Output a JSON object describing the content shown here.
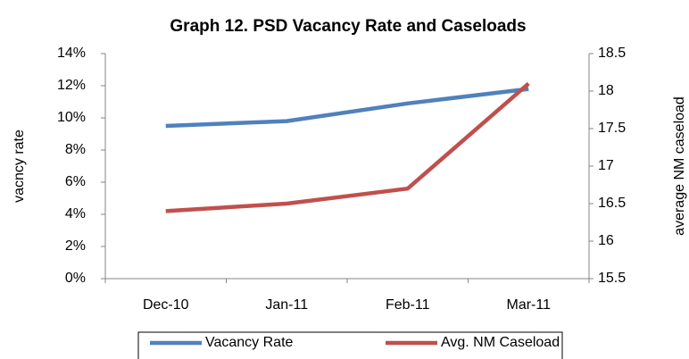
{
  "chart_data": {
    "type": "line",
    "title": "Graph 12. PSD Vacancy Rate and Caseloads",
    "y_label": "vacncy rate",
    "y2_label": "average NM caseload",
    "categories": [
      "Dec-10",
      "Jan-11",
      "Feb-11",
      "Mar-11"
    ],
    "series": [
      {
        "name": "Vacancy Rate",
        "color": "#4f81bd",
        "values": [
          9.5,
          9.8,
          10.9,
          11.8
        ]
      },
      {
        "name": "Avg. NM Caseload",
        "color": "#c0504d",
        "axis": "y2",
        "values": [
          16.4,
          16.5,
          16.7,
          18.1
        ]
      }
    ],
    "ylim": [
      0,
      14
    ],
    "yticks": [
      {
        "value": 0,
        "label": "0%"
      },
      {
        "value": 2,
        "label": "2%"
      },
      {
        "value": 4,
        "label": "4%"
      },
      {
        "value": 6,
        "label": "6%"
      },
      {
        "value": 8,
        "label": "8%"
      },
      {
        "value": 10,
        "label": "10%"
      },
      {
        "value": 12,
        "label": "12%"
      },
      {
        "value": 14,
        "label": "14%"
      }
    ],
    "y2lim": [
      15.5,
      18.5
    ],
    "y2ticks": [
      15.5,
      16,
      16.5,
      17,
      17.5,
      18,
      18.5
    ],
    "grid": false,
    "legend": "bottom"
  }
}
